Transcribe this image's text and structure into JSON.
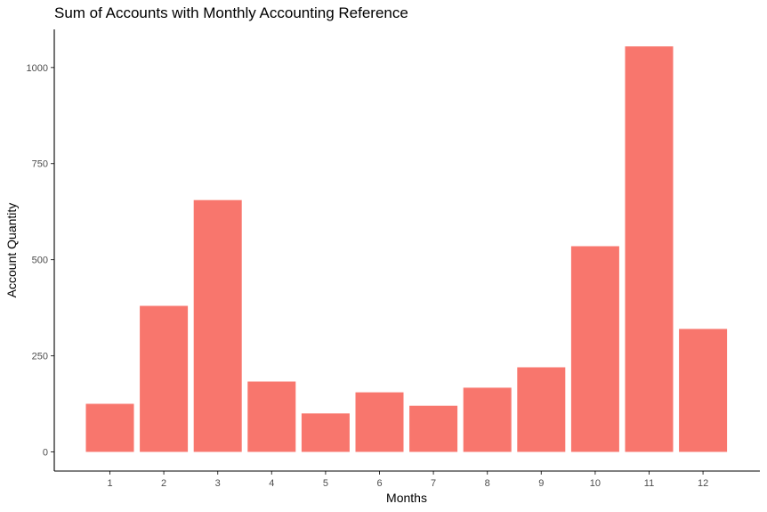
{
  "chart_data": {
    "type": "bar",
    "title": "Sum of Accounts with Monthly Accounting Reference",
    "xlabel": "Months",
    "ylabel": "Account Quantity",
    "categories": [
      "1",
      "2",
      "3",
      "4",
      "5",
      "6",
      "7",
      "8",
      "9",
      "10",
      "11",
      "12"
    ],
    "values": [
      125,
      380,
      655,
      183,
      100,
      155,
      120,
      167,
      220,
      535,
      1055,
      320
    ],
    "ylim": [
      0,
      1100
    ],
    "yticks": [
      0,
      250,
      500,
      750,
      1000
    ],
    "grid": false,
    "bar_color": "#F8766D"
  }
}
